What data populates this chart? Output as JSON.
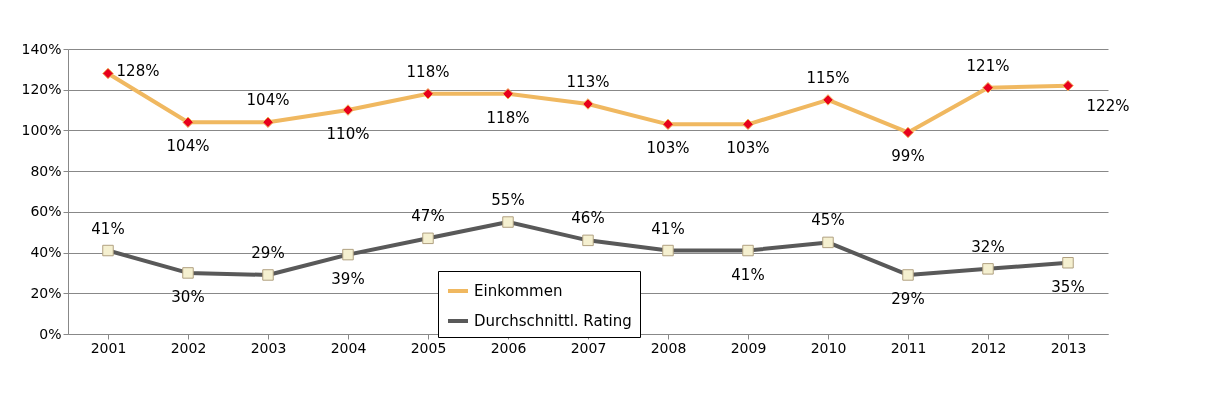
{
  "chart_data": {
    "type": "line",
    "categories": [
      "2001",
      "2002",
      "2003",
      "2004",
      "2005",
      "2006",
      "2007",
      "2008",
      "2009",
      "2010",
      "2011",
      "2012",
      "2013"
    ],
    "series": [
      {
        "name": "Einkommen",
        "color": "#f0b860",
        "marker": "diamond",
        "values": [
          128,
          104,
          104,
          110,
          118,
          118,
          113,
          103,
          103,
          115,
          99,
          121,
          122
        ],
        "value_labels": [
          "128%",
          "104%",
          "104%",
          "110%",
          "118%",
          "118%",
          "113%",
          "103%",
          "103%",
          "115%",
          "99%",
          "121%",
          "122%"
        ]
      },
      {
        "name": "Durchschnittl. Rating",
        "color": "#595959",
        "marker": "square",
        "values": [
          41,
          30,
          29,
          39,
          47,
          55,
          46,
          41,
          41,
          45,
          29,
          32,
          35
        ],
        "value_labels": [
          "41%",
          "30%",
          "29%",
          "39%",
          "47%",
          "55%",
          "46%",
          "41%",
          "41%",
          "45%",
          "29%",
          "32%",
          "35%"
        ]
      }
    ],
    "ylim": [
      0,
      140
    ],
    "yticks": [
      {
        "value": 0,
        "label": "0%"
      },
      {
        "value": 20,
        "label": "20%"
      },
      {
        "value": 40,
        "label": "40%"
      },
      {
        "value": 60,
        "label": "60%"
      },
      {
        "value": 80,
        "label": "80%"
      },
      {
        "value": 100,
        "label": "100%"
      },
      {
        "value": 120,
        "label": "120%"
      },
      {
        "value": 140,
        "label": "140%"
      }
    ],
    "grid": "y",
    "legend": "bottom",
    "line_style": "solid"
  }
}
